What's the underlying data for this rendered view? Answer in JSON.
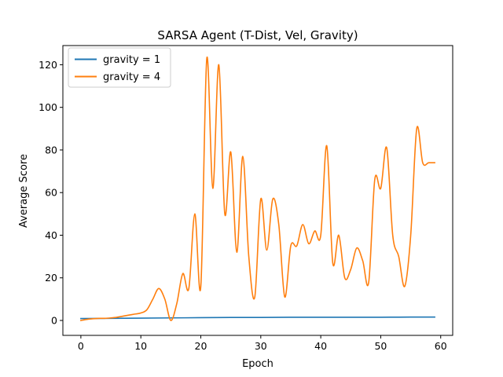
{
  "chart_data": {
    "type": "line",
    "title": "SARSA Agent (T-Dist, Vel, Gravity)",
    "xlabel": "Epoch",
    "ylabel": "Average Score",
    "xlim": [
      -3,
      62
    ],
    "ylim": [
      -7,
      129
    ],
    "xticks": [
      0,
      10,
      20,
      30,
      40,
      50,
      60
    ],
    "yticks": [
      0,
      20,
      40,
      60,
      80,
      100,
      120
    ],
    "grid": false,
    "legend": "upper left",
    "series": [
      {
        "name": "gravity = 1",
        "color": "#1f77b4",
        "x": [
          0,
          5,
          10,
          15,
          20,
          25,
          30,
          35,
          40,
          45,
          50,
          55,
          59
        ],
        "y": [
          0.9,
          1.0,
          1.1,
          1.2,
          1.3,
          1.4,
          1.4,
          1.5,
          1.5,
          1.5,
          1.5,
          1.6,
          1.6
        ]
      },
      {
        "name": "gravity = 4",
        "color": "#ff7f0e",
        "x": [
          0,
          1,
          2,
          3,
          4,
          5,
          6,
          7,
          8,
          9,
          10,
          11,
          12,
          13,
          14,
          15,
          16,
          17,
          18,
          19,
          20,
          21,
          22,
          23,
          24,
          25,
          26,
          27,
          28,
          29,
          30,
          31,
          32,
          33,
          34,
          35,
          36,
          37,
          38,
          39,
          40,
          41,
          42,
          43,
          44,
          45,
          46,
          47,
          48,
          49,
          50,
          51,
          52,
          53,
          54,
          55,
          56,
          57,
          58,
          59
        ],
        "y": [
          0,
          0.5,
          0.8,
          1.0,
          1.0,
          1.2,
          1.5,
          2.0,
          2.5,
          3.0,
          3.5,
          5.0,
          10.0,
          15.0,
          10.0,
          0.0,
          8.0,
          22.0,
          15.0,
          50.0,
          16.0,
          123.0,
          62.0,
          120.0,
          50.0,
          79.0,
          32.0,
          77.0,
          30.0,
          11.0,
          57.0,
          33.0,
          57.0,
          45.0,
          11.0,
          35.0,
          35.0,
          45.0,
          36.0,
          42.0,
          40.0,
          82.0,
          27.0,
          40.0,
          20.0,
          24.0,
          34.0,
          28.0,
          18.0,
          66.0,
          62.0,
          81.0,
          40.0,
          30.0,
          16.0,
          40.0,
          90.0,
          74.0,
          74.0,
          74.0
        ]
      }
    ]
  }
}
